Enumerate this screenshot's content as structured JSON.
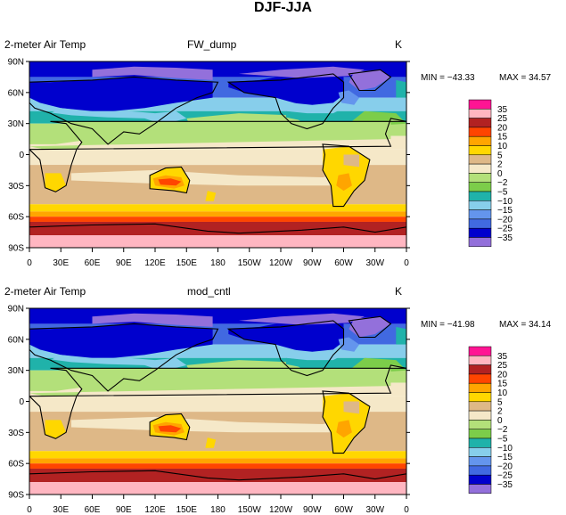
{
  "chart_data": {
    "type": "heatmap",
    "title": "DJF-JJA",
    "units_label": "K",
    "variable_label": "2-meter Air Temp",
    "lat_ticks": [
      "90N",
      "60N",
      "30N",
      "0",
      "30S",
      "60S",
      "90S"
    ],
    "lon_ticks": [
      "0",
      "30E",
      "60E",
      "90E",
      "120E",
      "150E",
      "180",
      "150W",
      "120W",
      "90W",
      "60W",
      "30W",
      "0"
    ],
    "contour_levels": [
      -35,
      -25,
      -20,
      -15,
      -10,
      -5,
      -2,
      0,
      2,
      5,
      10,
      15,
      20,
      25,
      35
    ],
    "level_labels": [
      "35",
      "25",
      "20",
      "15",
      "10",
      "5",
      "2",
      "0",
      "−2",
      "−5",
      "−10",
      "−15",
      "−20",
      "−25",
      "−35"
    ],
    "colors": [
      "#9370db",
      "#0000cd",
      "#4169e1",
      "#6495ed",
      "#87ceeb",
      "#20b2aa",
      "#7ccd4a",
      "#b3e07a",
      "#f5e8c8",
      "#deb887",
      "#ffd700",
      "#ffa500",
      "#ff4500",
      "#b22222",
      "#ffb6c1",
      "#ff1493"
    ],
    "panels": [
      {
        "name": "FW_dump",
        "min_label": "MIN = −43.33",
        "max_label": "MAX =  34.57",
        "min": -43.33,
        "max": 34.57
      },
      {
        "name": "mod_cntl",
        "min_label": "MIN = −41.98",
        "max_label": "MAX =  34.14",
        "min": -41.98,
        "max": 34.14
      }
    ]
  }
}
